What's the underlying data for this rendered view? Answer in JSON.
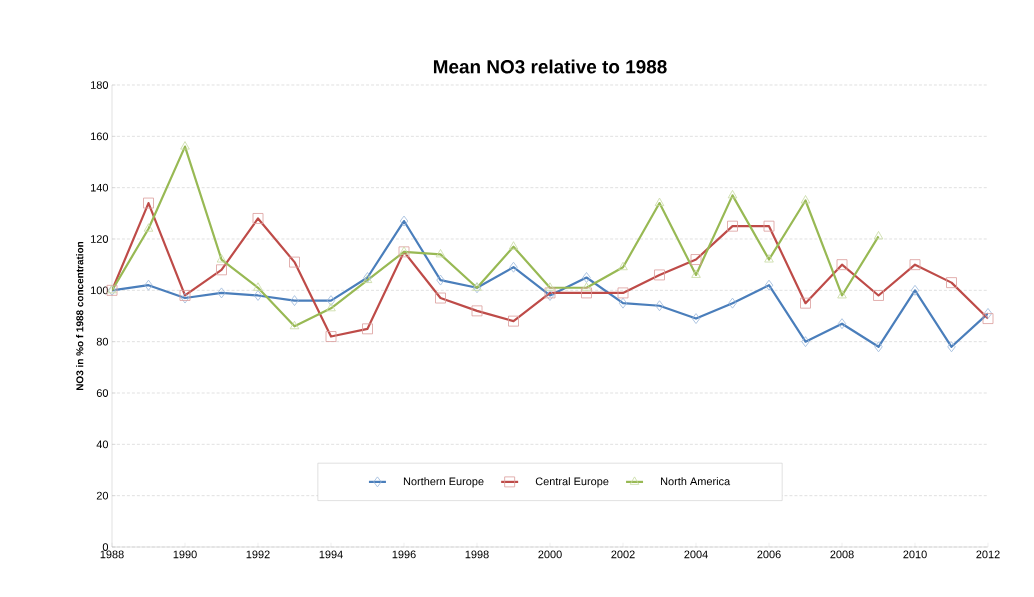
{
  "chart_data": {
    "type": "line",
    "title": "Mean NO3 relative to 1988",
    "ylabel": "NO3 in %o f 1988 concentration",
    "x": [
      1988,
      1989,
      1990,
      1991,
      1992,
      1993,
      1994,
      1995,
      1996,
      1997,
      1998,
      1999,
      2000,
      2001,
      2002,
      2003,
      2004,
      2005,
      2006,
      2007,
      2008,
      2009,
      2010,
      2011,
      2012
    ],
    "series": [
      {
        "name": "Northern Europe",
        "color": "#4a7ebb",
        "marker": "diamond",
        "values": [
          100,
          102,
          97,
          99,
          98,
          96,
          96,
          105,
          127,
          104,
          101,
          109,
          98,
          105,
          95,
          94,
          89,
          95,
          102,
          80,
          87,
          78,
          100,
          78,
          91
        ]
      },
      {
        "name": "Central Europe",
        "color": "#be4b48",
        "marker": "square",
        "values": [
          100,
          134,
          98,
          108,
          128,
          111,
          82,
          85,
          115,
          97,
          92,
          88,
          99,
          99,
          99,
          106,
          112,
          125,
          125,
          95,
          110,
          98,
          110,
          103,
          89
        ]
      },
      {
        "name": "North America",
        "color": "#98b954",
        "marker": "triangle",
        "values": [
          100,
          124,
          156,
          112,
          101,
          86,
          93,
          104,
          115,
          114,
          101,
          117,
          101,
          101,
          109,
          134,
          106,
          137,
          112,
          135,
          98,
          121,
          null,
          null,
          null
        ]
      }
    ],
    "xlim": [
      1988,
      2012
    ],
    "xticks": [
      1988,
      1990,
      1992,
      1994,
      1996,
      1998,
      2000,
      2002,
      2004,
      2006,
      2008,
      2010,
      2012
    ],
    "ylim": [
      0,
      180
    ],
    "yticks": [
      0,
      20,
      40,
      60,
      80,
      100,
      120,
      140,
      160,
      180
    ],
    "grid": "y",
    "legend": "bottom",
    "line_style": "solid"
  }
}
